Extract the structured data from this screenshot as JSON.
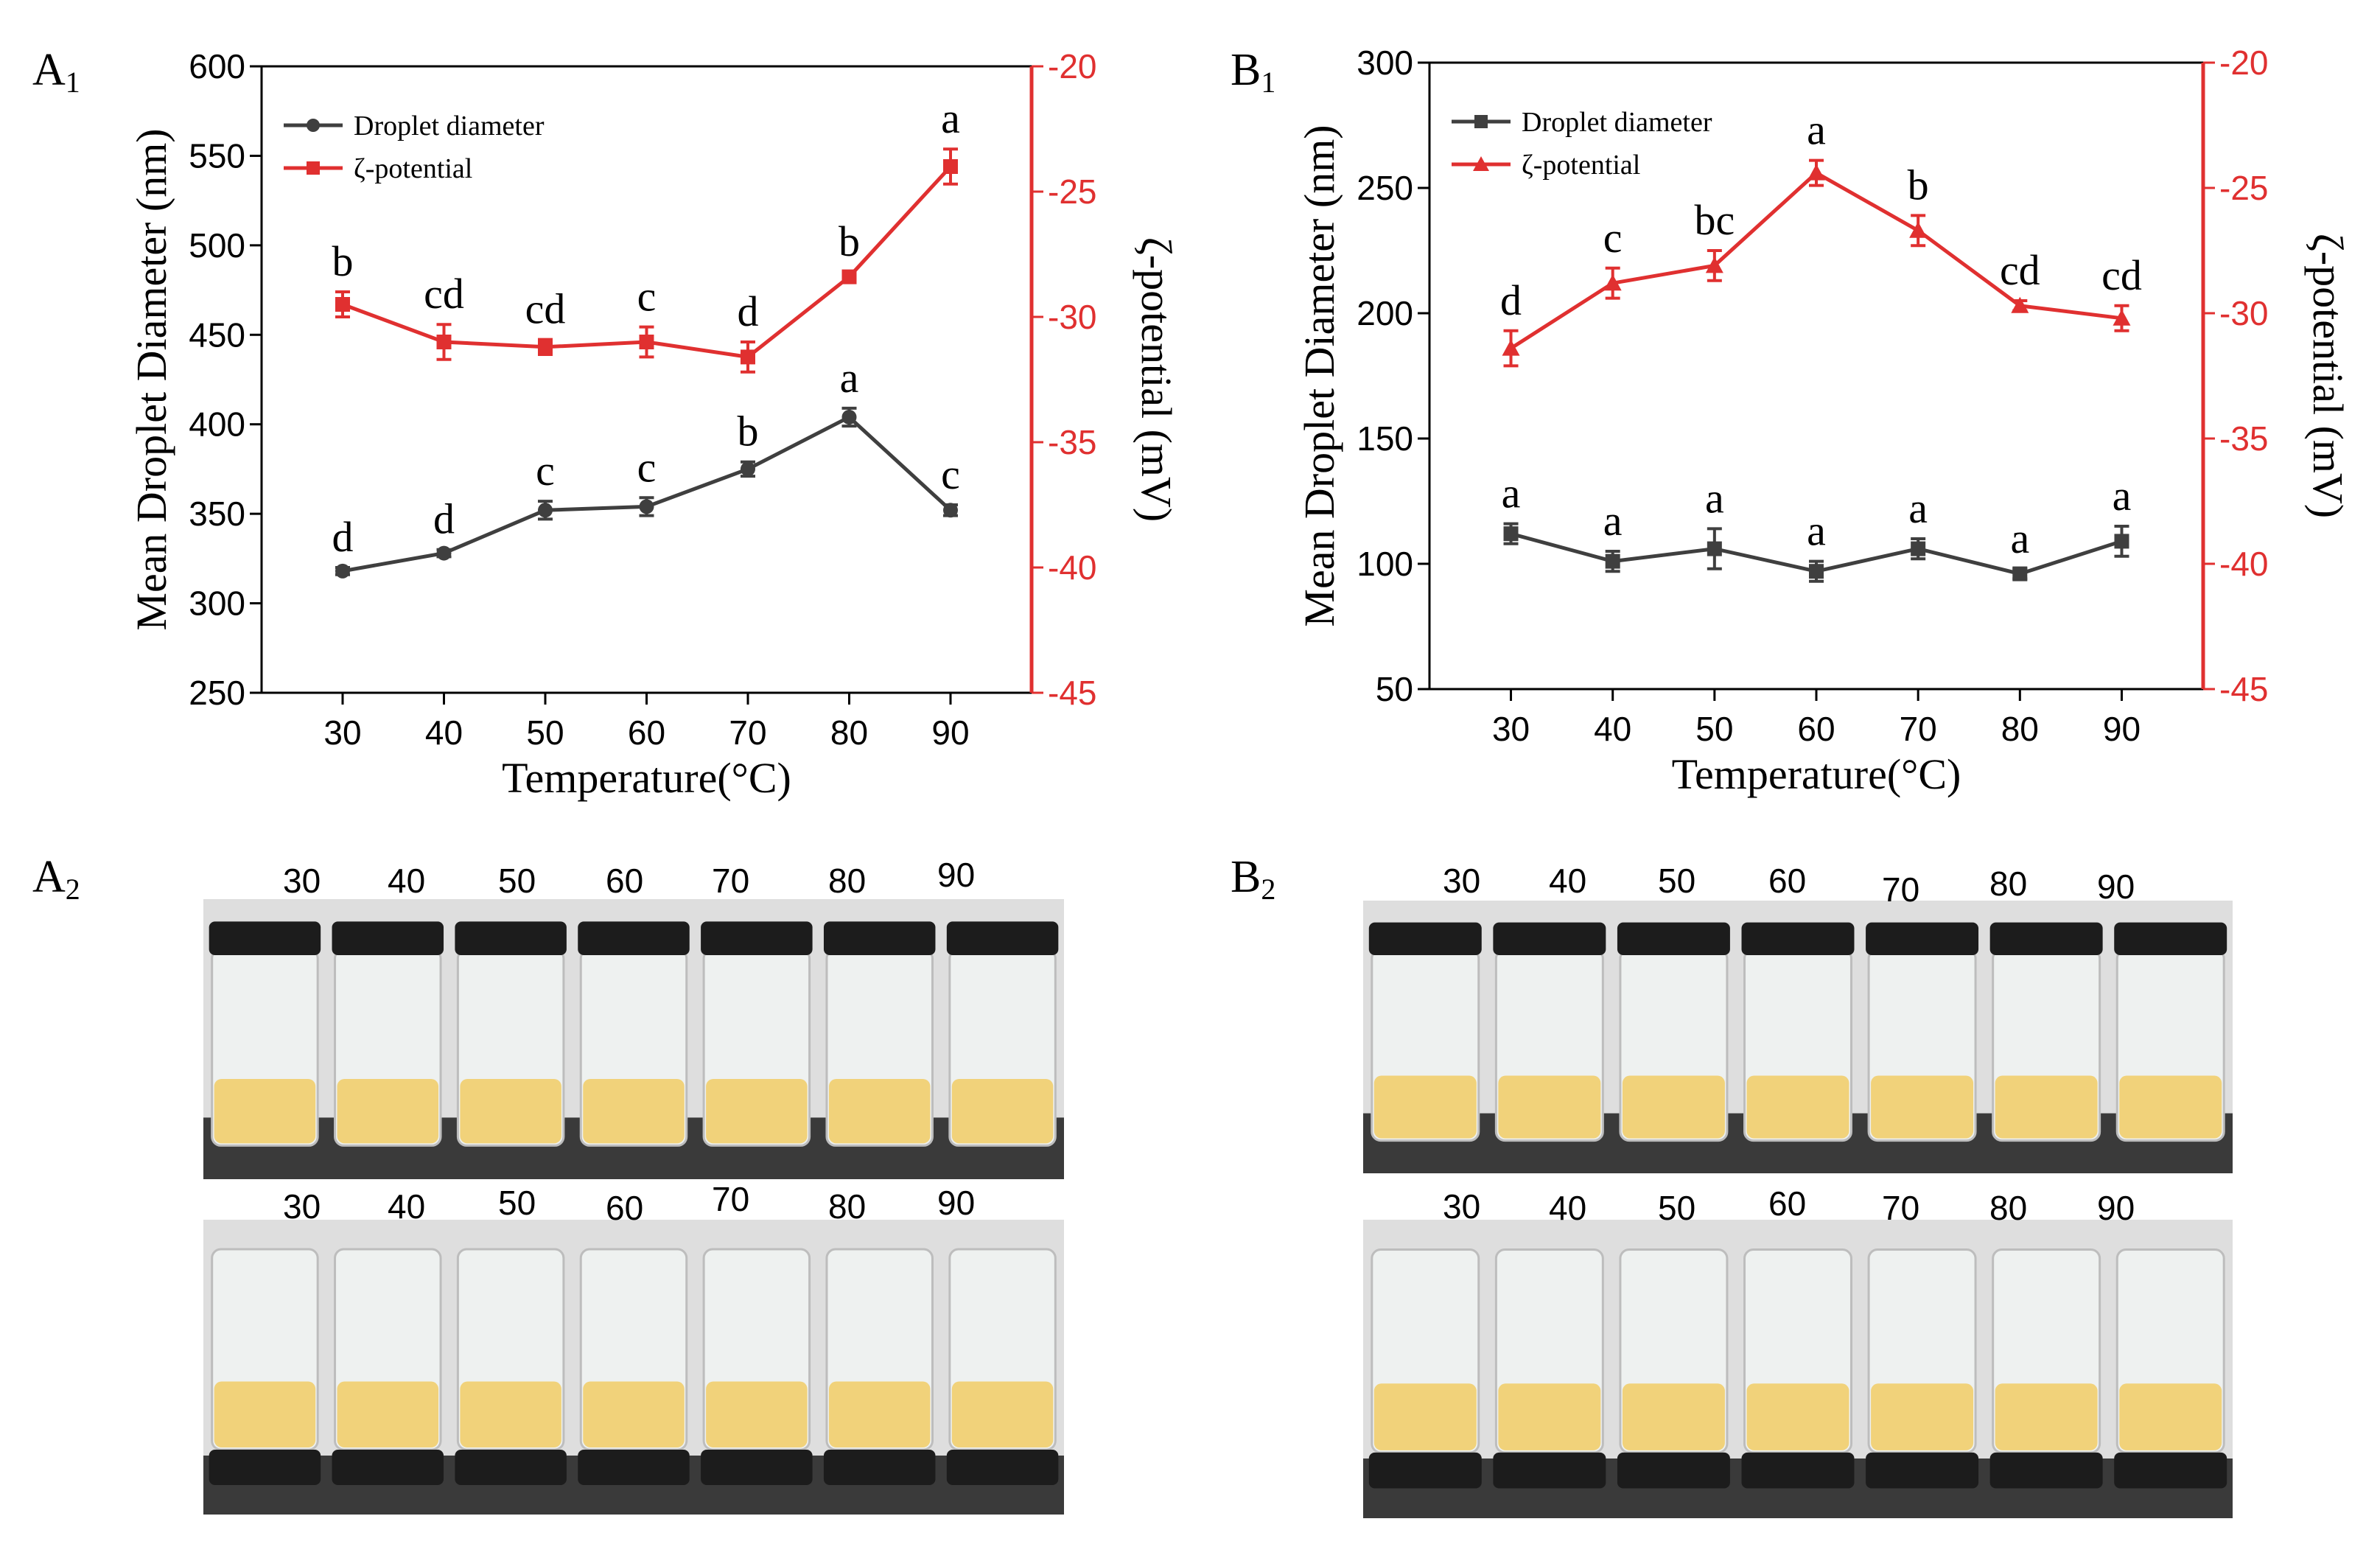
{
  "panels": {
    "a1": {
      "main": "A",
      "sub": "1"
    },
    "b1": {
      "main": "B",
      "sub": "1"
    },
    "a2": {
      "main": "A",
      "sub": "2"
    },
    "b2": {
      "main": "B",
      "sub": "2"
    }
  },
  "chart_data": [
    {
      "id": "A1",
      "type": "line",
      "xlabel": "Temperature(°C)",
      "ylabel": "Mean Droplet Diameter (nm)",
      "y2label": "ζ-potential (mV)",
      "x": [
        30,
        40,
        50,
        60,
        70,
        80,
        90
      ],
      "xlim": [
        22,
        98
      ],
      "xticks": [
        30,
        40,
        50,
        60,
        70,
        80,
        90
      ],
      "ylim": [
        250,
        600
      ],
      "yticks": [
        250,
        300,
        350,
        400,
        450,
        500,
        550,
        600
      ],
      "y2lim": [
        -45,
        -20
      ],
      "y2ticks": [
        -45,
        -40,
        -35,
        -30,
        -25,
        -20
      ],
      "legend_position": "top-left",
      "series": [
        {
          "name": "Droplet diameter",
          "axis": "left",
          "color": "#3f3f3f",
          "marker": "circle",
          "values": [
            318,
            328,
            352,
            354,
            375,
            404,
            352
          ],
          "errors": [
            2,
            2,
            5,
            5,
            4,
            5,
            3
          ],
          "letters": [
            "d",
            "d",
            "c",
            "c",
            "b",
            "a",
            "c"
          ]
        },
        {
          "name": "ζ-potential",
          "axis": "right",
          "color": "#e03030",
          "marker": "square",
          "values": [
            -29.5,
            -31.0,
            -31.2,
            -31.0,
            -31.6,
            -28.4,
            -24.0
          ],
          "errors": [
            0.5,
            0.7,
            0.3,
            0.6,
            0.6,
            0.2,
            0.7
          ],
          "letters": [
            "b",
            "cd",
            "cd",
            "c",
            "d",
            "b",
            "a"
          ]
        }
      ]
    },
    {
      "id": "B1",
      "type": "line",
      "xlabel": "Temperature(°C)",
      "ylabel": "Mean Droplet Diameter (nm)",
      "y2label": "ζ-potential (mV)",
      "x": [
        30,
        40,
        50,
        60,
        70,
        80,
        90
      ],
      "xlim": [
        22,
        98
      ],
      "xticks": [
        30,
        40,
        50,
        60,
        70,
        80,
        90
      ],
      "ylim": [
        50,
        300
      ],
      "yticks": [
        50,
        100,
        150,
        200,
        250,
        300
      ],
      "y2lim": [
        -45,
        -20
      ],
      "y2ticks": [
        -45,
        -40,
        -35,
        -30,
        -25,
        -20
      ],
      "legend_position": "top-left",
      "series": [
        {
          "name": "Droplet diameter",
          "axis": "left",
          "color": "#3f3f3f",
          "marker": "square",
          "values": [
            112,
            101,
            106,
            97,
            106,
            96,
            109
          ],
          "errors": [
            4,
            4,
            8,
            4,
            4,
            2,
            6
          ],
          "letters": [
            "a",
            "a",
            "a",
            "a",
            "a",
            "a",
            "a"
          ]
        },
        {
          "name": "ζ-potential",
          "axis": "right",
          "color": "#e03030",
          "marker": "triangle",
          "values": [
            -31.4,
            -28.8,
            -28.1,
            -24.4,
            -26.7,
            -29.7,
            -30.2
          ],
          "errors": [
            0.7,
            0.6,
            0.6,
            0.5,
            0.6,
            0.2,
            0.5
          ],
          "letters": [
            "d",
            "c",
            "bc",
            "a",
            "b",
            "cd",
            "cd"
          ]
        }
      ]
    }
  ],
  "photos": {
    "a2_top": {
      "labels": [
        "30",
        "40",
        "50",
        "60",
        "70",
        "80",
        "90"
      ]
    },
    "a2_bottom": {
      "labels": [
        "30",
        "40",
        "50",
        "60",
        "70",
        "80",
        "90"
      ]
    },
    "b2_top": {
      "labels": [
        "30",
        "40",
        "50",
        "60",
        "70",
        "80",
        "90"
      ]
    },
    "b2_bottom": {
      "labels": [
        "30",
        "40",
        "50",
        "60",
        "70",
        "80",
        "90"
      ]
    }
  },
  "colors": {
    "emulsion": "#f1d27a",
    "cap": "#1c1c1c",
    "glass": "#eef1f0",
    "wall": "#dedede",
    "bench": "#3a3a3a"
  }
}
